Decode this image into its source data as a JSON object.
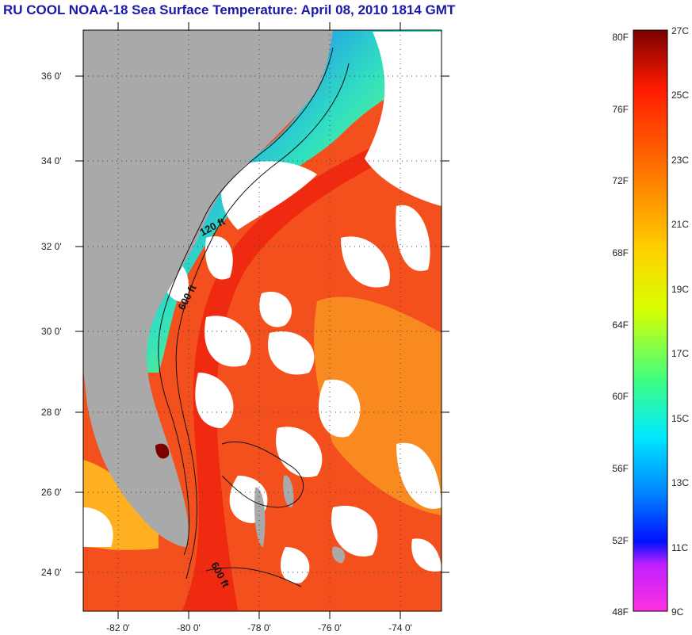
{
  "title": "RU COOL  NOAA-18  Sea Surface Temperature:  April 08, 2010 1814 GMT",
  "map": {
    "lon_range": [
      -83,
      -72.8
    ],
    "lat_range": [
      23,
      37
    ],
    "lat_labels": [
      "24 0'",
      "26 0'",
      "28 0'",
      "30 0'",
      "32 0'",
      "34 0'",
      "36 0'"
    ],
    "lon_labels": [
      "-82 0'",
      "-80 0'",
      "-78 0'",
      "-76 0'",
      "-74 0'"
    ],
    "isobath_labels": [
      "120 ft",
      "600 ft",
      "600 ft"
    ],
    "land_color": "#a9a9a9",
    "cloud_color": "#ffffff",
    "warm_water_color": "#f4501e"
  },
  "colorbar": {
    "fahrenheit_labels": [
      "80F",
      "76F",
      "72F",
      "68F",
      "64F",
      "60F",
      "56F",
      "52F",
      "48F"
    ],
    "celsius_labels": [
      "27C",
      "25C",
      "23C",
      "21C",
      "19C",
      "17C",
      "15C",
      "13C",
      "11C",
      "9C"
    ],
    "colors": [
      "#7a0000",
      "#ff1a00",
      "#ff7a00",
      "#ffd200",
      "#d8ff00",
      "#40ff80",
      "#00e8ff",
      "#0080ff",
      "#0010ff",
      "#c020ff",
      "#ff30e0"
    ]
  }
}
